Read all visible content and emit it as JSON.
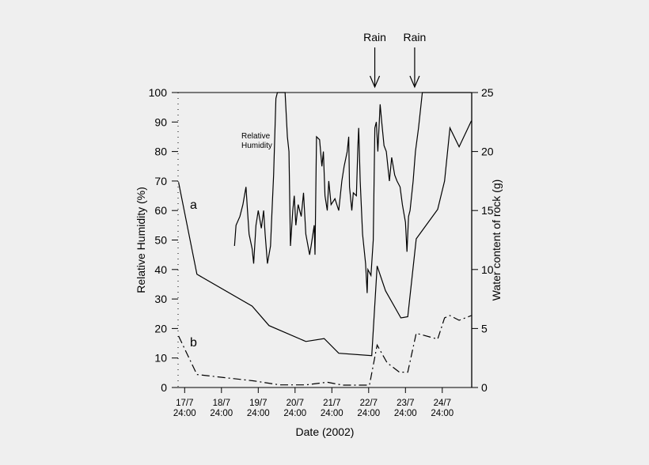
{
  "chart_data": {
    "type": "line",
    "xlabel": "Date (2002)",
    "ylabel": "Relative Humidity (%)",
    "y2label": "Water content of rock (g)",
    "ylim": [
      0,
      100
    ],
    "y2lim": [
      0,
      25
    ],
    "yticks": [
      0,
      10,
      20,
      30,
      40,
      50,
      60,
      70,
      80,
      90,
      100
    ],
    "y2ticks": [
      0,
      5,
      10,
      15,
      20,
      25
    ],
    "xticks": [
      {
        "date": "17/7 24:00",
        "line1": "17/7",
        "line2": "24:00"
      },
      {
        "date": "18/7 24:00",
        "line1": "18/7",
        "line2": "24:00"
      },
      {
        "date": "19/7 24:00",
        "line1": "19/7",
        "line2": "24:00"
      },
      {
        "date": "20/7 24:00",
        "line1": "20/7",
        "line2": "24:00"
      },
      {
        "date": "21/7 24:00",
        "line1": "21/7",
        "line2": "24:00"
      },
      {
        "date": "22/7 24:00",
        "line1": "22/7",
        "line2": "24:00"
      },
      {
        "date": "23/7 24:00",
        "line1": "23/7",
        "line2": "24:00"
      },
      {
        "date": "24/7 24:00",
        "line1": "24/7",
        "line2": "24:00"
      }
    ],
    "grid": false,
    "annotations": {
      "rh_label_1": "Relative",
      "rh_label_2": "Humidity",
      "curve_a": "a",
      "curve_b": "b",
      "rain": [
        {
          "label": "Rain",
          "date": "23/7 04:00"
        },
        {
          "label": "Rain",
          "date": "24/7 06:00"
        }
      ]
    },
    "series": [
      {
        "axis": "left",
        "style": "solid",
        "points": [
          [
            "19/7 08:30",
            48
          ],
          [
            "19/7 09:30",
            55
          ],
          [
            "19/7 12:00",
            58
          ],
          [
            "19/7 14:00",
            62
          ],
          [
            "19/7 16:00",
            68
          ],
          [
            "19/7 17:00",
            60
          ],
          [
            "19/7 18:00",
            52
          ],
          [
            "19/7 20:00",
            47
          ],
          [
            "19/7 21:00",
            42
          ],
          [
            "19/7 22:30",
            55
          ],
          [
            "20/7 00:00",
            60
          ],
          [
            "20/7 02:00",
            54
          ],
          [
            "20/7 03:30",
            60
          ],
          [
            "20/7 04:30",
            52
          ],
          [
            "20/7 06:00",
            42
          ],
          [
            "20/7 08:00",
            48
          ],
          [
            "20/7 09:00",
            60
          ],
          [
            "20/7 10:00",
            72
          ],
          [
            "20/7 11:30",
            98
          ],
          [
            "20/7 12:30",
            100
          ],
          [
            "20/7 17:30",
            100
          ],
          [
            "20/7 19:00",
            85
          ],
          [
            "20/7 20:00",
            80
          ],
          [
            "20/7 21:00",
            48
          ],
          [
            "20/7 22:30",
            60
          ],
          [
            "20/7 23:30",
            65
          ],
          [
            "21/7 00:30",
            55
          ],
          [
            "21/7 02:00",
            62
          ],
          [
            "21/7 04:00",
            58
          ],
          [
            "21/7 05:30",
            66
          ],
          [
            "21/7 07:00",
            52
          ],
          [
            "21/7 09:30",
            45
          ],
          [
            "21/7 10:30",
            48
          ],
          [
            "21/7 12:30",
            55
          ],
          [
            "21/7 13:00",
            45
          ],
          [
            "21/7 14:00",
            85
          ],
          [
            "21/7 16:00",
            84
          ],
          [
            "21/7 17:30",
            75
          ],
          [
            "21/7 18:30",
            80
          ],
          [
            "21/7 19:30",
            65
          ],
          [
            "21/7 21:00",
            60
          ],
          [
            "21/7 22:00",
            70
          ],
          [
            "21/7 23:30",
            62
          ],
          [
            "22/7 02:00",
            64
          ],
          [
            "22/7 04:30",
            60
          ],
          [
            "22/7 06:30",
            70
          ],
          [
            "22/7 08:00",
            75
          ],
          [
            "22/7 10:00",
            80
          ],
          [
            "22/7 11:00",
            85
          ],
          [
            "22/7 11:30",
            68
          ],
          [
            "22/7 13:00",
            60
          ],
          [
            "22/7 14:00",
            66
          ],
          [
            "22/7 16:00",
            65
          ],
          [
            "22/7 17:00",
            82
          ],
          [
            "22/7 17:30",
            88
          ],
          [
            "22/7 18:30",
            70
          ],
          [
            "22/7 20:00",
            52
          ],
          [
            "22/7 22:00",
            42
          ],
          [
            "22/7 23:00",
            32
          ],
          [
            "22/7 23:30",
            40
          ],
          [
            "23/7 01:30",
            38
          ],
          [
            "23/7 03:00",
            50
          ],
          [
            "23/7 04:00",
            88
          ],
          [
            "23/7 05:00",
            90
          ],
          [
            "23/7 06:00",
            80
          ],
          [
            "23/7 07:30",
            96
          ],
          [
            "23/7 08:30",
            90
          ],
          [
            "23/7 10:00",
            82
          ],
          [
            "23/7 11:30",
            80
          ],
          [
            "23/7 13:30",
            70
          ],
          [
            "23/7 15:00",
            78
          ],
          [
            "23/7 17:00",
            72
          ],
          [
            "23/7 18:30",
            70
          ],
          [
            "23/7 20:30",
            68
          ],
          [
            "23/7 22:00",
            62
          ],
          [
            "24/7 00:00",
            56
          ],
          [
            "24/7 01:00",
            46
          ],
          [
            "24/7 02:00",
            58
          ],
          [
            "24/7 03:00",
            60
          ],
          [
            "24/7 05:00",
            70
          ],
          [
            "24/7 06:30",
            80
          ],
          [
            "24/7 08:30",
            88
          ],
          [
            "24/7 11:00",
            100
          ],
          [
            "25/7 19:00",
            100
          ]
        ]
      },
      {
        "name": "a",
        "axis": "right",
        "style": "solid",
        "points": [
          [
            "17/7 20:00",
            17.4
          ],
          [
            "18/7 08:00",
            9.6
          ],
          [
            "19/7 20:00",
            6.9
          ],
          [
            "20/7 07:00",
            5.25
          ],
          [
            "21/7 07:00",
            3.9
          ],
          [
            "21/7 19:00",
            4.15
          ],
          [
            "22/7 04:30",
            2.9
          ],
          [
            "23/7 02:00",
            2.7
          ],
          [
            "23/7 05:30",
            10.3
          ],
          [
            "23/7 11:00",
            8.2
          ],
          [
            "23/7 21:00",
            5.9
          ],
          [
            "24/7 01:30",
            6.0
          ],
          [
            "24/7 07:00",
            12.6
          ],
          [
            "24/7 21:00",
            15.1
          ],
          [
            "25/7 01:30",
            17.5
          ],
          [
            "25/7 05:00",
            22.0
          ],
          [
            "25/7 11:00",
            20.4
          ],
          [
            "25/7 19:00",
            22.6
          ]
        ]
      },
      {
        "name": "b",
        "axis": "right",
        "style": "dashdot",
        "points": [
          [
            "17/7 20:00",
            4.36
          ],
          [
            "18/7 08:00",
            1.1
          ],
          [
            "19/7 21:00",
            0.56
          ],
          [
            "20/7 14:00",
            0.22
          ],
          [
            "21/7 07:00",
            0.22
          ],
          [
            "21/7 21:00",
            0.45
          ],
          [
            "22/7 07:00",
            0.2
          ],
          [
            "23/7 00:30",
            0.2
          ],
          [
            "23/7 05:30",
            3.6
          ],
          [
            "23/7 12:00",
            2.1
          ],
          [
            "23/7 20:00",
            1.3
          ],
          [
            "24/7 01:30",
            1.3
          ],
          [
            "24/7 07:00",
            4.6
          ],
          [
            "24/7 21:00",
            4.1
          ],
          [
            "25/7 01:30",
            5.9
          ],
          [
            "25/7 05:00",
            6.1
          ],
          [
            "25/7 11:00",
            5.7
          ],
          [
            "25/7 19:00",
            6.1
          ]
        ]
      }
    ]
  }
}
